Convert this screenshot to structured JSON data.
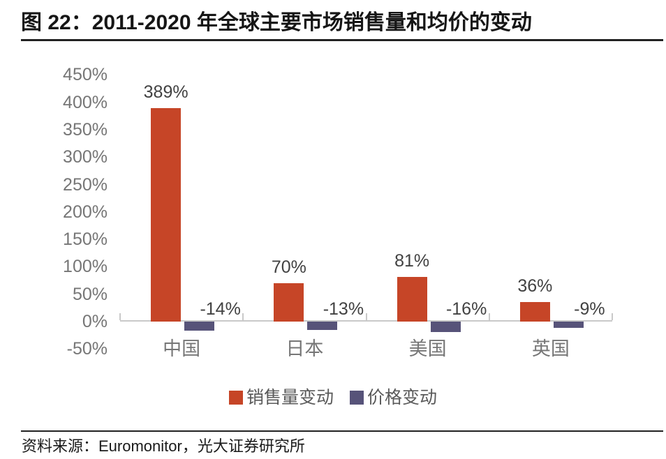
{
  "figure": {
    "title": "图 22：2011-2020 年全球主要市场销售量和均价的变动",
    "source": "资料来源：Euromonitor，光大证券研究所"
  },
  "chart_data": {
    "type": "bar",
    "title": "图 22：2011-2020 年全球主要市场销售量和均价的变动",
    "categories": [
      "中国",
      "日本",
      "美国",
      "英国"
    ],
    "series": [
      {
        "key": "sales-volume-change",
        "name": "销售量变动",
        "color": "#C64527",
        "values": [
          389,
          70,
          81,
          36
        ]
      },
      {
        "key": "price-change",
        "name": "价格变动",
        "color": "#575379",
        "values": [
          -14,
          -13,
          -16,
          -9
        ]
      }
    ],
    "data_labels": true,
    "data_label_suffix": "%",
    "y_axis": {
      "min": -50,
      "max": 450,
      "step": 50,
      "tick_suffix": "%"
    },
    "xlabel": "",
    "ylabel": "",
    "grid": false,
    "legend_position": "bottom",
    "axis_color": "#C9C9C9",
    "tick_label_color": "#767676",
    "data_label_color": "#424242",
    "source": "资料来源：Euromonitor，光大证券研究所"
  }
}
